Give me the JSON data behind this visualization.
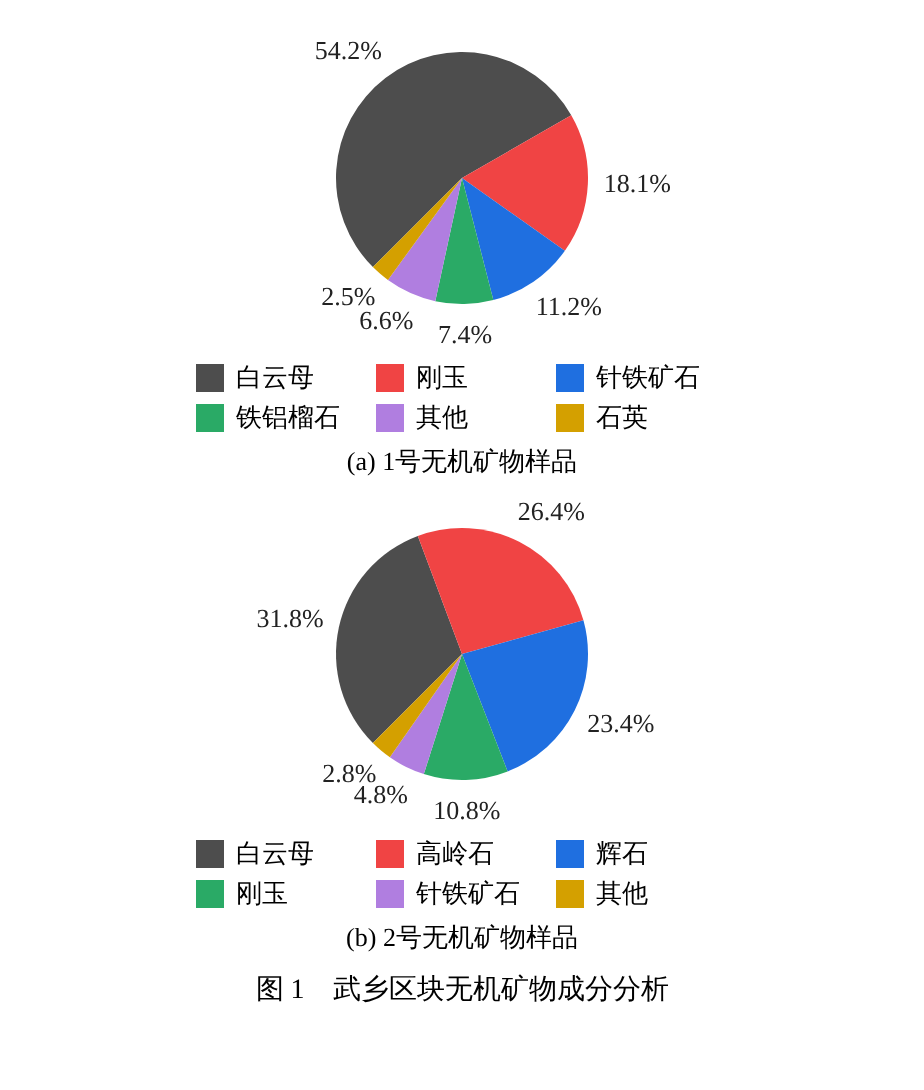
{
  "chart_data": [
    {
      "type": "pie",
      "title": "(a) 1号无机矿物样品",
      "categories": [
        "白云母",
        "刚玉",
        "针铁矿石",
        "铁铝榴石",
        "其他",
        "石英"
      ],
      "values": [
        54.2,
        18.1,
        11.2,
        7.4,
        6.6,
        2.5
      ],
      "value_labels": [
        "54.2%",
        "18.1%",
        "11.2%",
        "7.4%",
        "6.6%",
        "2.5%"
      ],
      "colors": [
        "#4d4d4d",
        "#f04444",
        "#1f6fe0",
        "#2aaa66",
        "#b07ee0",
        "#d4a000"
      ],
      "legend": "bottom"
    },
    {
      "type": "pie",
      "title": "(b) 2号无机矿物样品",
      "categories": [
        "白云母",
        "高岭石",
        "辉石",
        "刚玉",
        "针铁矿石",
        "其他"
      ],
      "values": [
        31.8,
        26.4,
        23.4,
        10.8,
        4.8,
        2.8
      ],
      "value_labels": [
        "31.8%",
        "26.4%",
        "23.4%",
        "10.8%",
        "4.8%",
        "2.8%"
      ],
      "colors": [
        "#4d4d4d",
        "#f04444",
        "#1f6fe0",
        "#2aaa66",
        "#b07ee0",
        "#d4a000"
      ],
      "legend": "bottom",
      "annotations": [
        "图 1　武乡区块无机矿物成分分析"
      ]
    }
  ]
}
